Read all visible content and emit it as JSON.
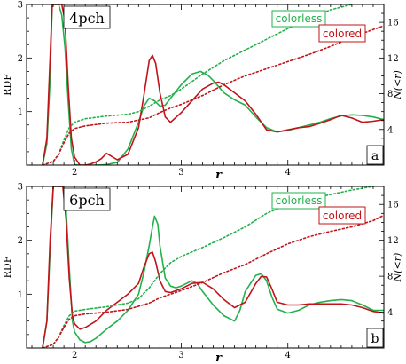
{
  "colors": {
    "colorless": "#22b14c",
    "colored": "#c0141a"
  },
  "chart_data": [
    {
      "type": "line",
      "panel_title": "4pch",
      "panel_letter": "a",
      "xlabel": "r",
      "ylabel": "RDF",
      "y2label": "N(<r)",
      "xlim": [
        1.55,
        4.9
      ],
      "ylim": [
        0,
        3
      ],
      "y2lim": [
        0,
        18
      ],
      "xticks": [
        "2",
        "3",
        "4"
      ],
      "yticks": [
        "1",
        "2",
        "3"
      ],
      "y2ticks": [
        "4",
        "8",
        "12",
        "16"
      ],
      "legend": [
        "colorless",
        "colored"
      ],
      "series": [
        {
          "name": "colorless",
          "kind": "RDF",
          "style": "solid",
          "x": [
            1.7,
            1.74,
            1.77,
            1.79,
            1.82,
            1.85,
            1.88,
            1.91,
            1.94,
            1.97,
            2.0,
            2.05,
            2.1,
            2.2,
            2.3,
            2.4,
            2.5,
            2.6,
            2.65,
            2.7,
            2.75,
            2.8,
            2.85,
            2.9,
            3.0,
            3.1,
            3.18,
            3.25,
            3.3,
            3.4,
            3.5,
            3.6,
            3.7,
            3.8,
            3.9,
            4.0,
            4.1,
            4.2,
            4.3,
            4.4,
            4.5,
            4.6,
            4.7,
            4.8,
            4.9
          ],
          "y": [
            0,
            0.4,
            1.6,
            3.0,
            3.0,
            3.0,
            2.8,
            2.2,
            1.2,
            0.3,
            0.01,
            0,
            0,
            0,
            0.01,
            0.05,
            0.3,
            0.8,
            1.1,
            1.25,
            1.2,
            1.1,
            1.12,
            1.25,
            1.5,
            1.7,
            1.75,
            1.68,
            1.58,
            1.35,
            1.22,
            1.12,
            0.9,
            0.7,
            0.62,
            0.65,
            0.7,
            0.75,
            0.8,
            0.87,
            0.92,
            0.94,
            0.93,
            0.9,
            0.85
          ]
        },
        {
          "name": "colored",
          "kind": "RDF",
          "style": "solid",
          "x": [
            1.7,
            1.74,
            1.77,
            1.79,
            1.82,
            1.85,
            1.88,
            1.91,
            1.94,
            1.97,
            2.0,
            2.05,
            2.1,
            2.15,
            2.2,
            2.25,
            2.3,
            2.4,
            2.5,
            2.6,
            2.65,
            2.7,
            2.73,
            2.76,
            2.8,
            2.85,
            2.9,
            3.0,
            3.1,
            3.2,
            3.3,
            3.35,
            3.4,
            3.5,
            3.6,
            3.7,
            3.8,
            3.9,
            4.0,
            4.1,
            4.2,
            4.3,
            4.4,
            4.5,
            4.6,
            4.7,
            4.8,
            4.9
          ],
          "y": [
            0,
            0.5,
            2.0,
            3.0,
            3.0,
            3.0,
            3.0,
            2.7,
            1.5,
            0.5,
            0.15,
            0,
            0,
            0.02,
            0.06,
            0.12,
            0.22,
            0.1,
            0.2,
            0.7,
            1.3,
            1.95,
            2.05,
            1.9,
            1.35,
            0.9,
            0.8,
            0.98,
            1.2,
            1.42,
            1.53,
            1.55,
            1.5,
            1.35,
            1.2,
            0.95,
            0.66,
            0.62,
            0.66,
            0.7,
            0.72,
            0.78,
            0.85,
            0.93,
            0.88,
            0.8,
            0.82,
            0.85
          ]
        },
        {
          "name": "colorless",
          "kind": "N(<r)",
          "style": "dotted",
          "x": [
            1.7,
            1.8,
            1.85,
            1.9,
            1.95,
            2.0,
            2.1,
            2.3,
            2.5,
            2.6,
            2.7,
            2.8,
            2.9,
            3.0,
            3.2,
            3.4,
            3.6,
            3.7,
            3.8,
            4.0,
            4.2,
            4.4,
            4.6,
            4.8,
            4.9
          ],
          "y": [
            0,
            0.4,
            1.2,
            2.8,
            4.2,
            4.8,
            5.2,
            5.5,
            5.7,
            6.0,
            6.6,
            7.3,
            7.8,
            8.5,
            10.2,
            11.7,
            12.9,
            13.5,
            14.1,
            15.3,
            16.4,
            17.4,
            18.0,
            18.4,
            18.5
          ]
        },
        {
          "name": "colored",
          "kind": "N(<r)",
          "style": "dotted",
          "x": [
            1.7,
            1.8,
            1.85,
            1.9,
            1.95,
            2.0,
            2.1,
            2.3,
            2.5,
            2.7,
            2.8,
            2.9,
            3.0,
            3.2,
            3.4,
            3.6,
            3.8,
            4.0,
            4.2,
            4.4,
            4.6,
            4.8,
            4.9
          ],
          "y": [
            0,
            0.4,
            1.2,
            2.5,
            3.6,
            4.1,
            4.4,
            4.7,
            4.8,
            5.3,
            5.9,
            6.4,
            6.8,
            7.8,
            9.0,
            10.0,
            10.8,
            11.6,
            12.4,
            13.3,
            14.3,
            15.2,
            15.6
          ]
        }
      ]
    },
    {
      "type": "line",
      "panel_title": "6pch",
      "panel_letter": "b",
      "xlabel": "r",
      "ylabel": "RDF",
      "y2label": "N(<r)",
      "xlim": [
        1.55,
        4.9
      ],
      "ylim": [
        0,
        3
      ],
      "y2lim": [
        0,
        18
      ],
      "xticks": [
        "2",
        "3",
        "4"
      ],
      "yticks": [
        "1",
        "2",
        "3"
      ],
      "y2ticks": [
        "4",
        "8",
        "12",
        "16"
      ],
      "legend": [
        "colorless",
        "colored"
      ],
      "series": [
        {
          "name": "colorless",
          "kind": "RDF",
          "style": "solid",
          "x": [
            1.7,
            1.74,
            1.77,
            1.8,
            1.83,
            1.86,
            1.89,
            1.92,
            1.95,
            1.98,
            2.0,
            2.05,
            2.1,
            2.15,
            2.2,
            2.3,
            2.4,
            2.5,
            2.6,
            2.65,
            2.7,
            2.73,
            2.75,
            2.78,
            2.8,
            2.85,
            2.9,
            2.95,
            3.0,
            3.1,
            3.15,
            3.2,
            3.3,
            3.4,
            3.5,
            3.55,
            3.6,
            3.7,
            3.75,
            3.8,
            3.85,
            3.9,
            4.0,
            4.1,
            4.2,
            4.3,
            4.4,
            4.5,
            4.6,
            4.7,
            4.8,
            4.9
          ],
          "y": [
            0,
            0.5,
            1.8,
            3.0,
            3.0,
            3.0,
            3.0,
            2.6,
            1.5,
            0.5,
            0.3,
            0.15,
            0.1,
            0.12,
            0.18,
            0.35,
            0.5,
            0.7,
            1.0,
            1.4,
            1.9,
            2.25,
            2.45,
            2.3,
            1.9,
            1.3,
            1.15,
            1.12,
            1.15,
            1.25,
            1.2,
            1.05,
            0.8,
            0.6,
            0.5,
            0.7,
            1.05,
            1.35,
            1.38,
            1.25,
            0.95,
            0.72,
            0.65,
            0.7,
            0.8,
            0.85,
            0.88,
            0.9,
            0.88,
            0.8,
            0.7,
            0.7
          ]
        },
        {
          "name": "colored",
          "kind": "RDF",
          "style": "solid",
          "x": [
            1.7,
            1.74,
            1.77,
            1.8,
            1.83,
            1.86,
            1.89,
            1.92,
            1.95,
            1.98,
            2.0,
            2.05,
            2.1,
            2.2,
            2.3,
            2.4,
            2.5,
            2.6,
            2.65,
            2.7,
            2.73,
            2.76,
            2.8,
            2.85,
            2.9,
            3.0,
            3.1,
            3.2,
            3.3,
            3.4,
            3.5,
            3.6,
            3.7,
            3.75,
            3.8,
            3.85,
            3.9,
            4.0,
            4.1,
            4.2,
            4.3,
            4.4,
            4.5,
            4.6,
            4.7,
            4.8,
            4.9
          ],
          "y": [
            0,
            0.5,
            2.0,
            3.0,
            3.0,
            3.0,
            3.0,
            2.4,
            1.3,
            0.6,
            0.45,
            0.35,
            0.38,
            0.5,
            0.7,
            0.85,
            1.0,
            1.2,
            1.5,
            1.75,
            1.78,
            1.6,
            1.25,
            1.05,
            1.03,
            1.1,
            1.2,
            1.22,
            1.1,
            0.9,
            0.75,
            0.85,
            1.2,
            1.33,
            1.32,
            1.1,
            0.85,
            0.8,
            0.8,
            0.82,
            0.82,
            0.82,
            0.82,
            0.8,
            0.75,
            0.68,
            0.65
          ]
        },
        {
          "name": "colorless",
          "kind": "N(<r)",
          "style": "dotted",
          "x": [
            1.7,
            1.8,
            1.85,
            1.9,
            1.95,
            2.0,
            2.1,
            2.3,
            2.5,
            2.6,
            2.7,
            2.8,
            2.9,
            3.0,
            3.2,
            3.4,
            3.6,
            3.8,
            4.0,
            4.2,
            4.4,
            4.6,
            4.8,
            4.9
          ],
          "y": [
            0,
            0.4,
            1.2,
            2.5,
            3.6,
            4.1,
            4.3,
            4.6,
            5.0,
            5.5,
            6.7,
            8.3,
            9.5,
            10.2,
            11.2,
            12.3,
            13.5,
            15.0,
            16.0,
            16.6,
            17.1,
            17.6,
            18.0,
            18.2
          ]
        },
        {
          "name": "colored",
          "kind": "N(<r)",
          "style": "dotted",
          "x": [
            1.7,
            1.8,
            1.85,
            1.9,
            1.95,
            2.0,
            2.1,
            2.3,
            2.5,
            2.7,
            2.8,
            2.9,
            3.0,
            3.2,
            3.4,
            3.6,
            3.8,
            4.0,
            4.2,
            4.4,
            4.6,
            4.8,
            4.9
          ],
          "y": [
            0,
            0.4,
            1.2,
            2.3,
            3.2,
            3.6,
            3.8,
            4.0,
            4.3,
            5.0,
            5.6,
            6.0,
            6.4,
            7.3,
            8.4,
            9.3,
            10.5,
            11.6,
            12.4,
            13.0,
            13.5,
            14.2,
            14.8
          ]
        }
      ]
    }
  ]
}
